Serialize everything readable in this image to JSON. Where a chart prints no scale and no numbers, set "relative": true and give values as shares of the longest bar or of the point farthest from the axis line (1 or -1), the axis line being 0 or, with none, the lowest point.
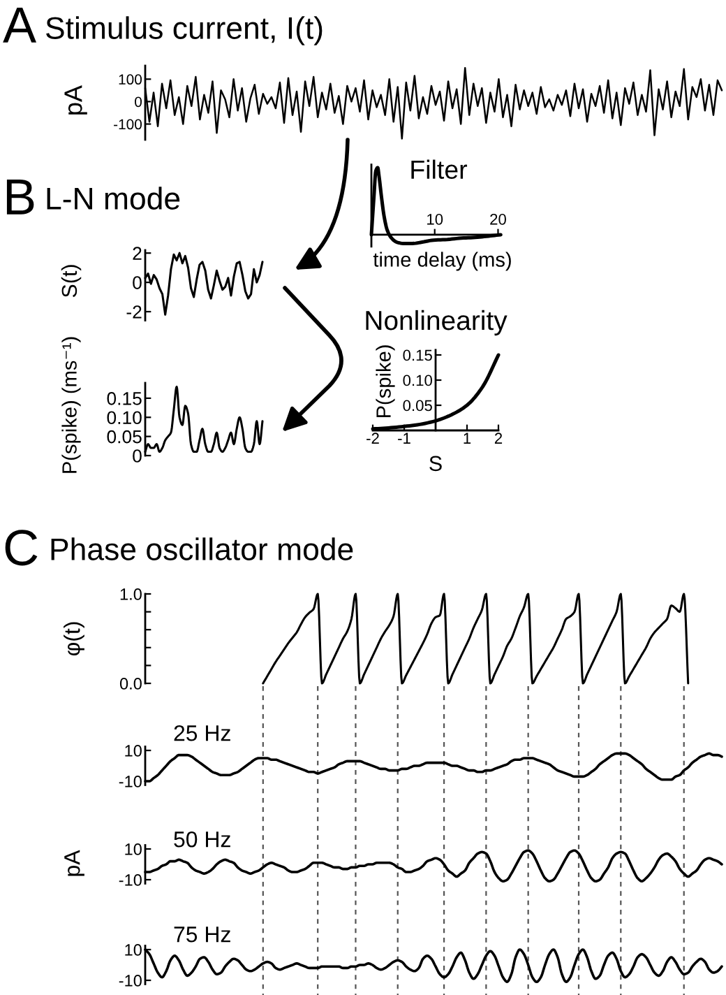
{
  "chart_data": [
    {
      "type": "line",
      "title": "Stimulus current, I(t)",
      "annotations": [
        "A"
      ],
      "ylabel": "pA",
      "categories": [
        null,
        null,
        null,
        null,
        null,
        null,
        null,
        null,
        null,
        null,
        null,
        null,
        null,
        null,
        null,
        null,
        null,
        null,
        null,
        null,
        null,
        null,
        null,
        null,
        null,
        null,
        null,
        null,
        null,
        null,
        null,
        null,
        null,
        null,
        null,
        null,
        null,
        null,
        null,
        null,
        null,
        null,
        null,
        null,
        null,
        null,
        null,
        null,
        null,
        null,
        null,
        null,
        null,
        null,
        null,
        null,
        null,
        null,
        null,
        null,
        null,
        null,
        null,
        null,
        null,
        null,
        null,
        null,
        null,
        null,
        null,
        null,
        null,
        null,
        null,
        null,
        null,
        null,
        null,
        null,
        null,
        null,
        null,
        null,
        null,
        null,
        null,
        null,
        null,
        null,
        null,
        null,
        null,
        null,
        null,
        null,
        null,
        null,
        null,
        null,
        null,
        null,
        null,
        null,
        null,
        null,
        null,
        null,
        null,
        null,
        null,
        null,
        null,
        null,
        null,
        null,
        null,
        null,
        null,
        null,
        null,
        null,
        null,
        null,
        null,
        null,
        null,
        null,
        null,
        null,
        null,
        null,
        null,
        null,
        null,
        null,
        null,
        null
      ],
      "values": [
        60,
        -90,
        40,
        -110,
        80,
        -30,
        95,
        -60,
        20,
        -100,
        70,
        -20,
        110,
        -80,
        30,
        -50,
        90,
        -140,
        50,
        10,
        -70,
        100,
        -40,
        60,
        -90,
        15,
        75,
        -55,
        35,
        -10,
        20,
        -30,
        85,
        -95,
        105,
        -60,
        45,
        -135,
        90,
        -20,
        110,
        -70,
        40,
        -35,
        80,
        -50,
        25,
        -100,
        70,
        0,
        60,
        -45,
        95,
        -80,
        50,
        -25,
        30,
        -60,
        100,
        -90,
        65,
        -165,
        85,
        -40,
        115,
        -75,
        20,
        -55,
        70,
        -15,
        45,
        -85,
        90,
        -30,
        55,
        -100,
        150,
        -60,
        80,
        -20,
        60,
        -95,
        40,
        -45,
        100,
        -70,
        30,
        -110,
        75,
        -35,
        50,
        -20,
        40,
        -55,
        65,
        -25,
        10,
        -40,
        30,
        -15,
        50,
        -65,
        80,
        -30,
        55,
        -90,
        35,
        -20,
        70,
        -50,
        95,
        -75,
        40,
        -105,
        60,
        -10,
        85,
        -60,
        30,
        -45,
        140,
        -150,
        55,
        -35,
        90,
        -70,
        45,
        -20,
        145,
        -80,
        65,
        20,
        100,
        -40,
        75,
        -60,
        95,
        50
      ],
      "color": "#000000",
      "ylim": [
        -170,
        160
      ],
      "yticks": [
        -100,
        0,
        100
      ]
    },
    {
      "type": "line",
      "title": "L-N mode",
      "annotations": [
        "B"
      ],
      "ylabel": "S(t)",
      "categories": [
        null,
        null,
        null,
        null,
        null,
        null,
        null,
        null,
        null,
        null,
        null,
        null,
        null,
        null,
        null,
        null,
        null,
        null,
        null,
        null,
        null,
        null,
        null,
        null,
        null,
        null,
        null,
        null,
        null,
        null,
        null,
        null,
        null,
        null,
        null,
        null,
        null,
        null,
        null,
        null,
        null,
        null
      ],
      "values": [
        0.3,
        0.6,
        -0.1,
        0.5,
        0.2,
        -0.4,
        -0.8,
        -2.2,
        -0.9,
        0.9,
        1.9,
        1.5,
        2.0,
        1.3,
        1.8,
        1.0,
        -0.4,
        -1.0,
        0.2,
        1.2,
        1.4,
        0.8,
        -0.5,
        -1.1,
        -0.2,
        0.8,
        0.1,
        -0.5,
        -0.3,
        0.3,
        -0.9,
        0.4,
        1.3,
        1.4,
        0.5,
        -0.6,
        -1.1,
        -0.8,
        0.9,
        0.0,
        0.5,
        1.4
      ],
      "color": "#000000",
      "ylim": [
        -2.6,
        2.2
      ],
      "yticks": [
        -2,
        0,
        2
      ]
    },
    {
      "type": "line",
      "title": "Filter",
      "xlabel": "time delay (ms)",
      "x": [
        0,
        0.4,
        0.7,
        1.0,
        1.2,
        1.6,
        2.0,
        2.5,
        3.1,
        4.0,
        5.1,
        6.5,
        8.0,
        9.8,
        12.0,
        14.2,
        16.4,
        18.5,
        20.4
      ],
      "values": [
        0.0,
        0.56,
        0.95,
        1.0,
        0.88,
        0.56,
        0.28,
        0.07,
        -0.04,
        -0.11,
        -0.13,
        -0.13,
        -0.11,
        -0.08,
        -0.07,
        -0.05,
        -0.04,
        -0.02,
        0.0
      ],
      "color": "#000000",
      "relative": true,
      "xlim": [
        0,
        20.5
      ],
      "xticks": [
        10,
        20
      ]
    },
    {
      "type": "line",
      "title": "Nonlinearity",
      "xlabel": "S",
      "ylabel": "P(spike)",
      "x": [
        -2,
        -1.5,
        -1,
        -0.5,
        0,
        0.5,
        1,
        1.5,
        2
      ],
      "values": [
        0.003,
        0.005,
        0.008,
        0.012,
        0.019,
        0.031,
        0.05,
        0.087,
        0.15
      ],
      "color": "#000000",
      "xlim": [
        -2,
        2
      ],
      "ylim": [
        0,
        0.16
      ],
      "xticks": [
        -2,
        -1,
        1,
        2
      ],
      "yticks": [
        0.05,
        {
          "value": 0.1,
          "label": "0.10"
        },
        0.15
      ]
    },
    {
      "type": "line",
      "ylabel": "P(spike) (ms⁻¹)",
      "categories": [
        null,
        null,
        null,
        null,
        null,
        null,
        null,
        null,
        null,
        null,
        null,
        null,
        null,
        null,
        null,
        null,
        null,
        null,
        null,
        null,
        null,
        null,
        null,
        null,
        null,
        null,
        null,
        null,
        null,
        null,
        null,
        null,
        null,
        null,
        null,
        null,
        null,
        null,
        null,
        null,
        null,
        null
      ],
      "values": [
        0.01,
        0.03,
        0.02,
        0.02,
        0.03,
        0.01,
        0.02,
        0.04,
        0.05,
        0.06,
        0.12,
        0.18,
        0.1,
        0.08,
        0.13,
        0.11,
        0.03,
        0.01,
        0.01,
        0.04,
        0.07,
        0.03,
        0.01,
        0.01,
        0.03,
        0.06,
        0.02,
        0.01,
        0.02,
        0.04,
        0.06,
        0.03,
        0.07,
        0.1,
        0.07,
        0.02,
        0.01,
        0.01,
        0.03,
        0.09,
        0.03,
        0.09
      ],
      "color": "#000000",
      "ylim": [
        0,
        0.19
      ],
      "yticks": [
        0,
        0.05,
        {
          "value": 0.1,
          "label": "0.10"
        },
        0.15
      ]
    },
    {
      "type": "line",
      "title": "Phase oscillator mode",
      "annotations": [
        "C"
      ],
      "ylabel": "φ(t)",
      "categories": [
        null,
        null,
        null,
        null,
        null,
        null,
        null,
        null,
        null,
        null,
        null,
        null,
        null,
        null,
        null,
        null,
        null,
        null,
        null,
        null,
        null,
        null,
        null,
        null,
        null,
        null,
        null,
        null,
        null,
        null,
        null,
        null,
        null,
        null,
        null,
        null,
        null,
        null,
        null,
        null,
        null,
        null,
        null,
        null,
        null,
        null,
        null,
        null,
        null,
        null,
        null,
        null,
        null,
        null,
        null,
        null,
        null,
        null,
        null,
        null,
        null,
        null,
        null,
        null,
        null,
        null,
        null,
        null,
        null,
        null,
        null,
        null,
        null,
        null,
        null,
        null,
        null,
        null,
        null,
        null,
        null,
        null,
        null,
        null,
        null,
        null,
        null,
        null,
        null,
        null,
        null,
        null,
        null,
        null,
        null,
        null,
        null,
        null,
        null,
        null,
        null,
        null,
        null,
        null,
        null,
        null,
        null,
        null,
        null,
        null,
        null,
        null,
        null,
        null,
        null,
        null,
        null,
        null,
        null,
        null,
        null,
        null,
        null,
        null,
        null,
        null,
        null,
        null,
        null,
        null,
        null,
        null,
        null,
        null,
        null,
        null,
        null,
        null
      ],
      "values": [
        null,
        null,
        null,
        null,
        null,
        null,
        null,
        null,
        null,
        null,
        null,
        null,
        null,
        null,
        null,
        null,
        null,
        null,
        null,
        null,
        null,
        null,
        null,
        null,
        null,
        null,
        null,
        null,
        0.0,
        0.08,
        0.16,
        0.24,
        0.31,
        0.38,
        0.45,
        0.51,
        0.57,
        0.66,
        0.74,
        0.79,
        0.83,
        1.0,
        0.0,
        0.1,
        0.2,
        0.3,
        0.4,
        0.5,
        0.58,
        0.72,
        1.0,
        0.0,
        0.1,
        0.2,
        0.3,
        0.4,
        0.5,
        0.58,
        0.65,
        0.75,
        1.0,
        0.0,
        0.09,
        0.18,
        0.27,
        0.36,
        0.45,
        0.55,
        0.67,
        0.74,
        0.76,
        1.0,
        0.0,
        0.1,
        0.2,
        0.3,
        0.4,
        0.5,
        0.62,
        0.72,
        0.82,
        1.0,
        0.0,
        0.1,
        0.2,
        0.3,
        0.42,
        0.5,
        0.62,
        0.75,
        0.85,
        1.0,
        0.0,
        0.08,
        0.16,
        0.24,
        0.32,
        0.4,
        0.5,
        0.6,
        0.72,
        0.75,
        0.8,
        1.0,
        0.0,
        0.1,
        0.2,
        0.3,
        0.4,
        0.5,
        0.6,
        0.7,
        0.8,
        1.0,
        0.0,
        0.08,
        0.16,
        0.24,
        0.32,
        0.4,
        0.5,
        0.57,
        0.62,
        0.67,
        0.72,
        0.87,
        0.84,
        0.8,
        1.0,
        0.0,
        null,
        null,
        null,
        null,
        null,
        null,
        null,
        null
      ],
      "color": "#000000",
      "ylim": [
        0,
        1
      ],
      "yticks": [
        {
          "value": 0,
          "label": "0.0"
        },
        {
          "value": 0.2,
          "label": null
        },
        {
          "value": 0.4,
          "label": null
        },
        {
          "value": 0.6,
          "label": null
        },
        {
          "value": 0.8,
          "label": null
        },
        {
          "value": 1,
          "label": "1.0"
        }
      ]
    },
    {
      "type": "line",
      "title": "25 Hz",
      "categories": [
        null,
        null,
        null,
        null,
        null,
        null,
        null,
        null,
        null,
        null,
        null,
        null,
        null,
        null,
        null,
        null,
        null,
        null,
        null,
        null,
        null,
        null,
        null,
        null,
        null,
        null,
        null,
        null,
        null,
        null,
        null,
        null,
        null,
        null,
        null,
        null,
        null,
        null,
        null,
        null,
        null,
        null,
        null,
        null,
        null,
        null,
        null,
        null,
        null,
        null,
        null,
        null,
        null,
        null,
        null,
        null,
        null,
        null,
        null,
        null,
        null,
        null,
        null,
        null,
        null,
        null,
        null,
        null,
        null,
        null,
        null,
        null,
        null,
        null,
        null,
        null,
        null,
        null,
        null,
        null,
        null,
        null,
        null,
        null,
        null,
        null,
        null,
        null,
        null,
        null,
        null,
        null,
        null,
        null,
        null,
        null,
        null,
        null,
        null,
        null,
        null,
        null,
        null,
        null,
        null,
        null,
        null,
        null,
        null,
        null,
        null,
        null,
        null,
        null,
        null,
        null,
        null,
        null,
        null,
        null,
        null,
        null,
        null,
        null,
        null,
        null,
        null,
        null,
        null,
        null,
        null,
        null,
        null,
        null,
        null,
        null,
        null,
        null
      ],
      "values": [
        -10,
        -10,
        -8,
        -6,
        -3,
        0,
        3,
        5,
        7,
        7,
        7,
        6,
        4,
        2,
        0,
        -2,
        -4,
        -5,
        -6,
        -6,
        -6,
        -5,
        -4,
        -2,
        0,
        2,
        4,
        5,
        5,
        5,
        4,
        4,
        3,
        2,
        1,
        0,
        -1,
        -2,
        -3,
        -4,
        -4,
        -5,
        -4,
        -3,
        -2,
        -1,
        1,
        2,
        3,
        3,
        3,
        3,
        2,
        1,
        0,
        -1,
        -2,
        -2,
        -3,
        -3,
        -3,
        -2,
        -2,
        -1,
        0,
        0,
        1,
        2,
        2,
        2,
        2,
        2,
        1,
        0,
        0,
        -1,
        -2,
        -3,
        -3,
        -4,
        -4,
        -3,
        -3,
        -2,
        -1,
        0,
        1,
        3,
        4,
        4,
        5,
        5,
        5,
        4,
        3,
        2,
        1,
        -1,
        -3,
        -4,
        -5,
        -6,
        -7,
        -7,
        -7,
        -6,
        -4,
        -2,
        1,
        3,
        5,
        7,
        8,
        8,
        8,
        7,
        5,
        3,
        1,
        -2,
        -4,
        -6,
        -8,
        -9,
        -9,
        -9,
        -7,
        -6,
        -3,
        -1,
        2,
        4,
        6,
        7,
        8,
        7,
        7,
        6
      ],
      "color": "#000000",
      "ylim": [
        -12.5,
        12.5
      ],
      "yticks": [
        -10,
        10
      ]
    },
    {
      "type": "line",
      "title": "50 Hz",
      "ylabel": "pA",
      "categories": [
        null,
        null,
        null,
        null,
        null,
        null,
        null,
        null,
        null,
        null,
        null,
        null,
        null,
        null,
        null,
        null,
        null,
        null,
        null,
        null,
        null,
        null,
        null,
        null,
        null,
        null,
        null,
        null,
        null,
        null,
        null,
        null,
        null,
        null,
        null,
        null,
        null,
        null,
        null,
        null,
        null,
        null,
        null,
        null,
        null,
        null,
        null,
        null,
        null,
        null,
        null,
        null,
        null,
        null,
        null,
        null,
        null,
        null,
        null,
        null,
        null,
        null,
        null,
        null,
        null,
        null,
        null,
        null,
        null,
        null,
        null,
        null,
        null,
        null,
        null,
        null,
        null,
        null,
        null,
        null,
        null,
        null,
        null,
        null,
        null,
        null,
        null,
        null,
        null,
        null,
        null,
        null,
        null,
        null,
        null,
        null,
        null,
        null,
        null,
        null,
        null,
        null,
        null,
        null,
        null,
        null,
        null,
        null,
        null,
        null,
        null,
        null,
        null,
        null,
        null,
        null,
        null,
        null,
        null,
        null,
        null,
        null,
        null,
        null,
        null,
        null,
        null,
        null,
        null,
        null,
        null,
        null,
        null,
        null,
        null,
        null,
        null,
        null
      ],
      "values": [
        -5,
        -5,
        -4,
        -3,
        -1,
        0,
        2,
        2,
        3,
        2,
        1,
        -2,
        -4,
        -5,
        -6,
        -5,
        -3,
        0,
        2,
        3,
        2,
        1,
        -2,
        -4,
        -5,
        -6,
        -5,
        -4,
        -2,
        0,
        1,
        0,
        -1,
        -2,
        -4,
        -5,
        -5,
        -4,
        -3,
        -1,
        1,
        1,
        1,
        0,
        -1,
        -2,
        -2,
        -3,
        -3,
        -2,
        -2,
        -1,
        -1,
        0,
        0,
        1,
        1,
        1,
        1,
        0,
        -2,
        -3,
        -5,
        -5,
        -4,
        -3,
        -1,
        2,
        3,
        4,
        3,
        0,
        -4,
        -6,
        -8,
        -6,
        -4,
        1,
        4,
        7,
        8,
        7,
        2,
        -5,
        -9,
        -11,
        -10,
        -6,
        -1,
        4,
        8,
        9,
        7,
        2,
        -4,
        -9,
        -11,
        -10,
        -6,
        -1,
        4,
        8,
        9,
        7,
        2,
        -4,
        -9,
        -11,
        -10,
        -6,
        -2,
        4,
        7,
        8,
        7,
        2,
        -4,
        -9,
        -11,
        -9,
        -6,
        -2,
        3,
        6,
        7,
        5,
        2,
        -3,
        -6,
        -8,
        -6,
        -4,
        0,
        3,
        4,
        3,
        2,
        0
      ],
      "color": "#000000",
      "ylim": [
        -12.5,
        12.5
      ],
      "yticks": [
        -10,
        10
      ]
    },
    {
      "type": "line",
      "title": "75 Hz",
      "categories": [
        null,
        null,
        null,
        null,
        null,
        null,
        null,
        null,
        null,
        null,
        null,
        null,
        null,
        null,
        null,
        null,
        null,
        null,
        null,
        null,
        null,
        null,
        null,
        null,
        null,
        null,
        null,
        null,
        null,
        null,
        null,
        null,
        null,
        null,
        null,
        null,
        null,
        null,
        null,
        null,
        null,
        null,
        null,
        null,
        null,
        null,
        null,
        null,
        null,
        null,
        null,
        null,
        null,
        null,
        null,
        null,
        null,
        null,
        null,
        null,
        null,
        null,
        null,
        null,
        null,
        null,
        null,
        null,
        null,
        null,
        null,
        null,
        null,
        null,
        null,
        null,
        null,
        null,
        null,
        null,
        null,
        null,
        null,
        null,
        null,
        null,
        null,
        null,
        null,
        null,
        null,
        null,
        null,
        null,
        null,
        null,
        null,
        null,
        null,
        null,
        null,
        null,
        null,
        null,
        null,
        null,
        null,
        null,
        null,
        null,
        null,
        null,
        null,
        null,
        null,
        null,
        null,
        null,
        null,
        null,
        null,
        null,
        null,
        null,
        null,
        null,
        null,
        null,
        null,
        null,
        null,
        null,
        null,
        null,
        null,
        null,
        null,
        null
      ],
      "values": [
        10,
        7,
        1,
        -5,
        -8,
        -4,
        3,
        6,
        3,
        -3,
        -7,
        -5,
        -1,
        4,
        5,
        2,
        -3,
        -6,
        -5,
        -1,
        2,
        4,
        3,
        0,
        -3,
        -4,
        -3,
        -1,
        1,
        2,
        1,
        -2,
        -3,
        -2,
        -1,
        0,
        1,
        0,
        -1,
        -2,
        -2,
        -2,
        -1,
        -1,
        -1,
        -1,
        -1,
        -2,
        -2,
        -1,
        -1,
        0,
        0,
        1,
        0,
        -2,
        -3,
        -2,
        0,
        2,
        3,
        2,
        -1,
        -3,
        -4,
        -2,
        4,
        6,
        4,
        -1,
        -6,
        -8,
        -6,
        -1,
        5,
        8,
        3,
        -5,
        -9,
        -6,
        0,
        6,
        9,
        6,
        -1,
        -8,
        -11,
        -6,
        5,
        10,
        7,
        0,
        -8,
        -11,
        -8,
        0,
        7,
        10,
        5,
        -6,
        -11,
        -8,
        0,
        7,
        10,
        5,
        -4,
        -9,
        -7,
        0,
        6,
        8,
        4,
        -4,
        -8,
        -6,
        -1,
        5,
        7,
        5,
        0,
        -5,
        -7,
        -4,
        2,
        5,
        2,
        -3,
        -6,
        -5,
        -1,
        2,
        4,
        2,
        -3,
        -5,
        -4,
        -1
      ],
      "color": "#000000",
      "ylim": [
        -12.5,
        12.5
      ],
      "yticks": [
        -10,
        10
      ]
    }
  ]
}
